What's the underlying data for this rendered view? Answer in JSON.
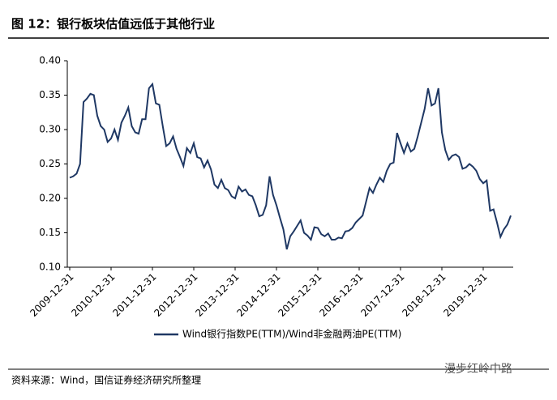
{
  "chart_data": {
    "type": "line",
    "title": "图 12：银行板块估值远低于其他行业",
    "source": "资料来源：Wind，国信证券经济研究所整理",
    "watermark": "漫步红岭中路",
    "categories": [
      "2009-12-31",
      null,
      null,
      null,
      null,
      null,
      null,
      null,
      null,
      null,
      null,
      null,
      "2010-12-31",
      null,
      null,
      null,
      null,
      null,
      null,
      null,
      null,
      null,
      null,
      null,
      "2011-12-31",
      null,
      null,
      null,
      null,
      null,
      null,
      null,
      null,
      null,
      null,
      null,
      "2012-12-31",
      null,
      null,
      null,
      null,
      null,
      null,
      null,
      null,
      null,
      null,
      null,
      "2013-12-31",
      null,
      null,
      null,
      null,
      null,
      null,
      null,
      null,
      null,
      null,
      null,
      "2014-12-31",
      null,
      null,
      null,
      null,
      null,
      null,
      null,
      null,
      null,
      null,
      null,
      "2015-12-31",
      null,
      null,
      null,
      null,
      null,
      null,
      null,
      null,
      null,
      null,
      null,
      "2016-12-31",
      null,
      null,
      null,
      null,
      null,
      null,
      null,
      null,
      null,
      null,
      null,
      "2017-12-31",
      null,
      null,
      null,
      null,
      null,
      null,
      null,
      null,
      null,
      null,
      null,
      "2018-12-31",
      null,
      null,
      null,
      null,
      null,
      null,
      null,
      null,
      null,
      null,
      null,
      "2019-12-31",
      null,
      null,
      null,
      null,
      null,
      null,
      null,
      null
    ],
    "series": [
      {
        "name": "Wind银行指数PE(TTM)/Wind非金融两油PE(TTM)",
        "color": "#1f3864",
        "values": [
          0.23,
          0.232,
          0.236,
          0.25,
          0.34,
          0.345,
          0.352,
          0.35,
          0.32,
          0.305,
          0.3,
          0.282,
          0.287,
          0.3,
          0.285,
          0.31,
          0.32,
          0.332,
          0.305,
          0.296,
          0.294,
          0.315,
          0.315,
          0.36,
          0.366,
          0.338,
          0.336,
          0.305,
          0.276,
          0.28,
          0.29,
          0.272,
          0.26,
          0.247,
          0.273,
          0.266,
          0.28,
          0.26,
          0.258,
          0.245,
          0.255,
          0.242,
          0.22,
          0.215,
          0.227,
          0.215,
          0.212,
          0.203,
          0.2,
          0.217,
          0.21,
          0.213,
          0.205,
          0.203,
          0.19,
          0.174,
          0.176,
          0.19,
          0.232,
          0.205,
          0.19,
          0.172,
          0.155,
          0.126,
          0.145,
          0.152,
          0.16,
          0.168,
          0.15,
          0.146,
          0.14,
          0.158,
          0.157,
          0.148,
          0.145,
          0.149,
          0.14,
          0.14,
          0.143,
          0.142,
          0.152,
          0.153,
          0.157,
          0.165,
          0.17,
          0.175,
          0.195,
          0.215,
          0.208,
          0.22,
          0.23,
          0.224,
          0.24,
          0.25,
          0.252,
          0.295,
          0.28,
          0.266,
          0.28,
          0.268,
          0.272,
          0.29,
          0.31,
          0.33,
          0.36,
          0.335,
          0.338,
          0.36,
          0.296,
          0.27,
          0.256,
          0.262,
          0.264,
          0.26,
          0.243,
          0.245,
          0.25,
          0.246,
          0.24,
          0.228,
          0.222,
          0.226,
          0.182,
          0.184,
          0.165,
          0.144,
          0.155,
          0.162,
          0.175
        ]
      }
    ],
    "ylim": [
      0.1,
      0.4
    ],
    "yticks": [
      {
        "value": 0.1,
        "label": "0.10"
      },
      0.15,
      {
        "value": 0.2,
        "label": "0.20"
      },
      0.25,
      {
        "value": 0.3,
        "label": "0.30"
      },
      0.35,
      {
        "value": 0.4,
        "label": "0.40"
      }
    ],
    "legend": "bottom"
  }
}
